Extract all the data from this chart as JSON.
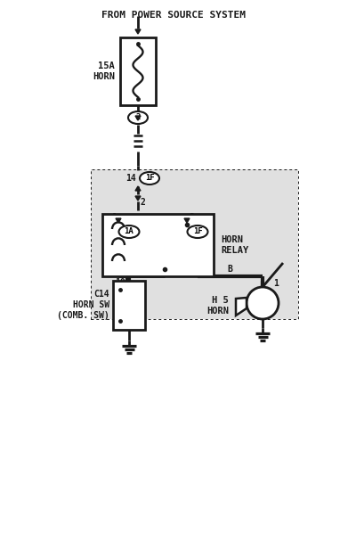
{
  "bg_color": "#ffffff",
  "line_color": "#1a1a1a",
  "figsize": [
    3.91,
    5.98
  ],
  "dpi": 100,
  "title": "FROM POWER SOURCE SYSTEM",
  "fuse_label": "15A\nHORN",
  "relay_label": "HORN\nRELAY",
  "horn_sw_label": "C14\nHORN SW\n(COMB. SW)",
  "horn_label": "H 5\nHORN",
  "shade_color": "#c8c8c8",
  "shade_alpha": 0.55
}
